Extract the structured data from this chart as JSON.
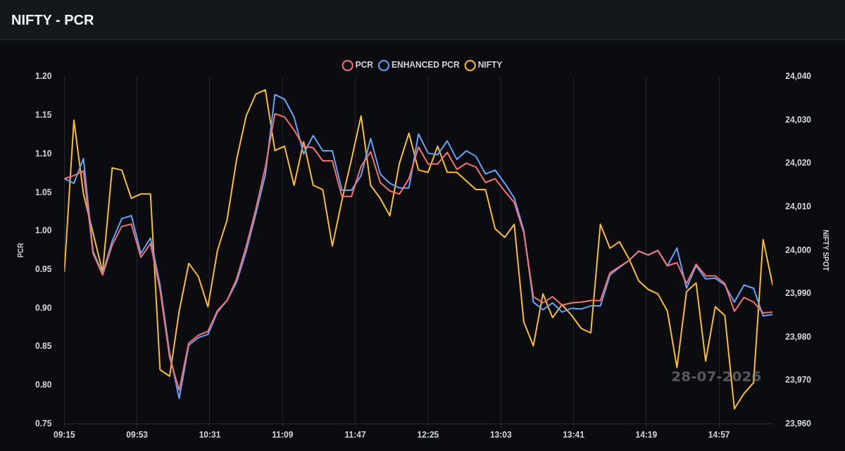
{
  "chart_data": {
    "type": "line",
    "title": "NIFTY - PCR",
    "ylabel": "PCR",
    "y2label": "NIFTY SPOT",
    "annotations": [
      "28-07-2026"
    ],
    "x": [
      9.25,
      9.3333,
      9.4167,
      9.5,
      9.5833,
      9.6667,
      9.75,
      9.8333,
      9.9167,
      10,
      10.0833,
      10.1667,
      10.25,
      10.3333,
      10.4167,
      10.5,
      10.5833,
      10.6667,
      10.75,
      10.8333,
      10.9167,
      11,
      11.0833,
      11.1667,
      11.25,
      11.3333,
      11.4167,
      11.5,
      11.5833,
      11.6667,
      11.75,
      11.8333,
      11.9167,
      12,
      12.0833,
      12.1667,
      12.25,
      12.3333,
      12.4167,
      12.5,
      12.5833,
      12.6667,
      12.75,
      12.8333,
      12.9167,
      13,
      13.0833,
      13.1667,
      13.25,
      13.3333,
      13.4167,
      13.5,
      13.5833,
      13.6667,
      13.75,
      13.8333,
      13.9167,
      14,
      14.0833,
      14.1667,
      14.25,
      14.3333,
      14.4167,
      14.5,
      14.5833,
      14.6667,
      14.75,
      14.8333,
      14.9167,
      15,
      15.0833,
      15.1667,
      15.25,
      15.3333,
      15.4167
    ],
    "series": [
      {
        "name": "PCR",
        "color": "#f87171",
        "values": [
          1.068,
          1.072,
          1.078,
          0.971,
          0.943,
          0.982,
          1.006,
          1.009,
          0.966,
          0.984,
          0.924,
          0.836,
          0.794,
          0.855,
          0.865,
          0.87,
          0.897,
          0.91,
          0.938,
          0.98,
          1.028,
          1.083,
          1.152,
          1.148,
          1.131,
          1.11,
          1.108,
          1.091,
          1.091,
          1.045,
          1.045,
          1.084,
          1.103,
          1.063,
          1.052,
          1.048,
          1.068,
          1.109,
          1.087,
          1.087,
          1.102,
          1.08,
          1.088,
          1.083,
          1.063,
          1.068,
          1.052,
          1.037,
          0.998,
          0.915,
          0.907,
          0.915,
          0.904,
          0.907,
          0.908,
          0.91,
          0.91,
          0.946,
          0.954,
          0.962,
          0.974,
          0.969,
          0.975,
          0.955,
          0.959,
          0.932,
          0.957,
          0.942,
          0.942,
          0.932,
          0.896,
          0.914,
          0.908,
          0.894,
          0.895
        ]
      },
      {
        "name": "ENHANCED PCR",
        "color": "#60a5fa",
        "values": [
          1.068,
          1.062,
          1.094,
          0.974,
          0.945,
          0.987,
          1.016,
          1.02,
          0.971,
          0.991,
          0.93,
          0.842,
          0.783,
          0.852,
          0.862,
          0.866,
          0.895,
          0.91,
          0.934,
          0.974,
          1.022,
          1.073,
          1.177,
          1.171,
          1.148,
          1.1,
          1.124,
          1.104,
          1.104,
          1.053,
          1.053,
          1.072,
          1.12,
          1.074,
          1.062,
          1.056,
          1.056,
          1.126,
          1.101,
          1.099,
          1.117,
          1.093,
          1.104,
          1.097,
          1.074,
          1.079,
          1.062,
          1.043,
          1.001,
          0.908,
          0.898,
          0.907,
          0.895,
          0.9,
          0.899,
          0.903,
          0.903,
          0.943,
          0.953,
          0.962,
          0.974,
          0.969,
          0.975,
          0.955,
          0.978,
          0.926,
          0.955,
          0.938,
          0.939,
          0.93,
          0.908,
          0.93,
          0.926,
          0.89,
          0.892
        ]
      },
      {
        "name": "NIFTY",
        "color": "#fbbf24",
        "axis": "y2",
        "values": [
          23995,
          24030,
          24013,
          24004,
          23995,
          24019,
          24018.5,
          24012,
          24013,
          24013,
          23972.5,
          23971,
          23986,
          23997,
          23994,
          23987,
          24000,
          24007,
          24021,
          24031,
          24036,
          24037,
          24023,
          24024,
          24015,
          24025,
          24015,
          24014,
          24001,
          24011.5,
          24021,
          24031,
          24015,
          24012,
          24008,
          24020,
          24027,
          24018.5,
          24018,
          24024,
          24018,
          24018,
          24016,
          24014,
          24014,
          24005,
          24003,
          24006,
          23983.5,
          23978,
          23990,
          23984.5,
          23987.5,
          23985,
          23982,
          23981,
          24006,
          24000.5,
          24002,
          23998,
          23993,
          23991,
          23990,
          23986,
          23973,
          23990.5,
          23992.5,
          23974.5,
          23987,
          23985,
          23963.5,
          23967,
          23969.5,
          24002.5,
          23992
        ]
      }
    ],
    "xlim": [
      9.25,
      15.4167
    ],
    "xticks": [
      {
        "value": 9.25,
        "label": "09:15"
      },
      {
        "value": 9.8833,
        "label": "09:53"
      },
      {
        "value": 10.5167,
        "label": "10:31"
      },
      {
        "value": 11.15,
        "label": "11:09"
      },
      {
        "value": 11.7833,
        "label": "11:47"
      },
      {
        "value": 12.4167,
        "label": "12:25"
      },
      {
        "value": 13.05,
        "label": "13:03"
      },
      {
        "value": 13.6833,
        "label": "13:41"
      },
      {
        "value": 14.3167,
        "label": "14:19"
      },
      {
        "value": 14.95,
        "label": "14:57"
      }
    ],
    "ylim": [
      0.75,
      1.2
    ],
    "yticks": [
      {
        "value": 0.75,
        "label": "0.75"
      },
      {
        "value": 0.8,
        "label": "0.80"
      },
      {
        "value": 0.85,
        "label": "0.85"
      },
      {
        "value": 0.9,
        "label": "0.90"
      },
      {
        "value": 0.95,
        "label": "0.95"
      },
      {
        "value": 1,
        "label": "1.00"
      },
      {
        "value": 1.05,
        "label": "1.05"
      },
      {
        "value": 1.1,
        "label": "1.10"
      },
      {
        "value": 1.15,
        "label": "1.15"
      },
      {
        "value": 1.2,
        "label": "1.20"
      }
    ],
    "y2lim": [
      23960,
      24040
    ],
    "y2ticks": [
      {
        "value": 23960,
        "label": "23,960"
      },
      {
        "value": 23970,
        "label": "23,970"
      },
      {
        "value": 23980,
        "label": "23,980"
      },
      {
        "value": 23990,
        "label": "23,990"
      },
      {
        "value": 24000,
        "label": "24,000"
      },
      {
        "value": 24010,
        "label": "24,010"
      },
      {
        "value": 24020,
        "label": "24,020"
      },
      {
        "value": 24030,
        "label": "24,030"
      },
      {
        "value": 24040,
        "label": "24,040"
      }
    ],
    "grid": "x",
    "legend": "top",
    "marker": "none",
    "line_style": "solid"
  }
}
